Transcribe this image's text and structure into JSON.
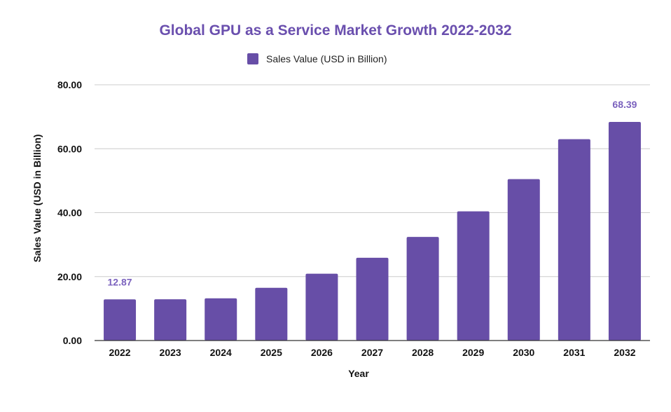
{
  "chart_data": {
    "type": "bar",
    "title": "Global GPU as a Service Market Growth 2022-2032",
    "legend": [
      {
        "label": "Sales Value (USD in Billion)",
        "color": "#674ea7"
      }
    ],
    "legend_position": "top-center",
    "xlabel": "Year",
    "ylabel": "Sales Value (USD in Billion)",
    "categories": [
      "2022",
      "2023",
      "2024",
      "2025",
      "2026",
      "2027",
      "2028",
      "2029",
      "2030",
      "2031",
      "2032"
    ],
    "series": [
      {
        "name": "Sales Value (USD in Billion)",
        "color": "#674ea7",
        "values": [
          12.87,
          12.9,
          13.2,
          16.5,
          20.9,
          25.9,
          32.4,
          40.4,
          50.5,
          63.0,
          68.39
        ]
      }
    ],
    "data_labels": [
      {
        "category": "2022",
        "text": "12.87"
      },
      {
        "category": "2032",
        "text": "68.39"
      }
    ],
    "ylim": [
      0,
      80
    ],
    "yticks": [
      0,
      20,
      40,
      60,
      80
    ],
    "ytick_labels": [
      "0.00",
      "20.00",
      "40.00",
      "60.00",
      "80.00"
    ],
    "grid": true,
    "colors": {
      "bar": "#674ea7",
      "title": "#6a4fae",
      "data_label": "#7b62be"
    }
  }
}
